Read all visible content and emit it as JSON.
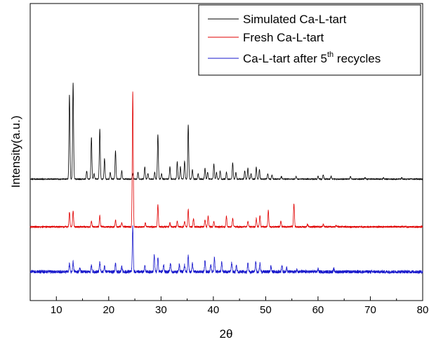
{
  "chart_data": {
    "type": "line",
    "xlabel": "2θ",
    "ylabel": "Intensity(a.u.)",
    "xlim": [
      5,
      80
    ],
    "x_ticks": [
      10,
      20,
      30,
      40,
      50,
      60,
      70,
      80
    ],
    "y_ticks_shown": false,
    "grid": false,
    "legend_placement": "top-right",
    "series": [
      {
        "name": "Simulated Ca-L-tart",
        "color": "#000000",
        "baseline": 0,
        "noise": 0.003,
        "peaks": [
          [
            12.5,
            0.62
          ],
          [
            13.2,
            0.71
          ],
          [
            15.8,
            0.06
          ],
          [
            16.7,
            0.31
          ],
          [
            17.2,
            0.04
          ],
          [
            18.3,
            0.37
          ],
          [
            19.2,
            0.15
          ],
          [
            20.3,
            0.05
          ],
          [
            21.3,
            0.21
          ],
          [
            22.5,
            0.06
          ],
          [
            24.6,
            0.04
          ],
          [
            25.6,
            0.05
          ],
          [
            26.9,
            0.09
          ],
          [
            27.5,
            0.04
          ],
          [
            28.8,
            0.05
          ],
          [
            29.4,
            0.33
          ],
          [
            30.1,
            0.04
          ],
          [
            31.7,
            0.09
          ],
          [
            33.1,
            0.13
          ],
          [
            33.7,
            0.09
          ],
          [
            34.5,
            0.13
          ],
          [
            35.2,
            0.4
          ],
          [
            36.0,
            0.07
          ],
          [
            37.1,
            0.04
          ],
          [
            38.4,
            0.08
          ],
          [
            38.9,
            0.05
          ],
          [
            40.1,
            0.11
          ],
          [
            40.6,
            0.05
          ],
          [
            41.3,
            0.06
          ],
          [
            42.5,
            0.05
          ],
          [
            43.7,
            0.12
          ],
          [
            44.3,
            0.05
          ],
          [
            46.0,
            0.06
          ],
          [
            46.6,
            0.08
          ],
          [
            47.2,
            0.04
          ],
          [
            48.2,
            0.09
          ],
          [
            48.8,
            0.07
          ],
          [
            50.4,
            0.04
          ],
          [
            51.2,
            0.03
          ],
          [
            53.0,
            0.02
          ],
          [
            55.8,
            0.02
          ],
          [
            60.0,
            0.02
          ],
          [
            61.0,
            0.03
          ],
          [
            62.5,
            0.02
          ],
          [
            66.2,
            0.02
          ],
          [
            69.0,
            0.01
          ],
          [
            72.5,
            0.01
          ],
          [
            76.0,
            0.01
          ]
        ]
      },
      {
        "name": "Fresh Ca-L-tart",
        "color": "#e00000",
        "baseline": 0,
        "noise": 0.006,
        "peaks": [
          [
            12.5,
            0.11
          ],
          [
            13.2,
            0.12
          ],
          [
            16.7,
            0.04
          ],
          [
            18.3,
            0.08
          ],
          [
            21.3,
            0.05
          ],
          [
            22.5,
            0.03
          ],
          [
            24.6,
            1.0
          ],
          [
            27.0,
            0.03
          ],
          [
            29.4,
            0.16
          ],
          [
            31.7,
            0.03
          ],
          [
            33.1,
            0.04
          ],
          [
            34.5,
            0.04
          ],
          [
            35.2,
            0.13
          ],
          [
            36.2,
            0.06
          ],
          [
            38.4,
            0.05
          ],
          [
            39.0,
            0.08
          ],
          [
            40.1,
            0.04
          ],
          [
            42.5,
            0.08
          ],
          [
            43.7,
            0.06
          ],
          [
            46.6,
            0.04
          ],
          [
            48.2,
            0.06
          ],
          [
            48.9,
            0.08
          ],
          [
            50.5,
            0.12
          ],
          [
            52.9,
            0.04
          ],
          [
            55.4,
            0.17
          ],
          [
            58.0,
            0.02
          ],
          [
            61.0,
            0.02
          ],
          [
            63.5,
            0.01
          ]
        ]
      },
      {
        "name": "Ca-L-tart after 5th recycles",
        "color": "#1a1acc",
        "baseline": 0,
        "noise": 0.012,
        "peaks": [
          [
            12.5,
            0.06
          ],
          [
            13.2,
            0.07
          ],
          [
            14.5,
            0.03
          ],
          [
            16.7,
            0.05
          ],
          [
            18.3,
            0.07
          ],
          [
            19.2,
            0.04
          ],
          [
            21.3,
            0.06
          ],
          [
            22.5,
            0.04
          ],
          [
            24.6,
            0.34
          ],
          [
            26.9,
            0.05
          ],
          [
            28.7,
            0.12
          ],
          [
            29.4,
            0.1
          ],
          [
            30.5,
            0.05
          ],
          [
            31.8,
            0.06
          ],
          [
            33.5,
            0.05
          ],
          [
            34.5,
            0.05
          ],
          [
            35.2,
            0.12
          ],
          [
            36.0,
            0.06
          ],
          [
            38.4,
            0.08
          ],
          [
            39.5,
            0.05
          ],
          [
            40.2,
            0.1
          ],
          [
            41.6,
            0.07
          ],
          [
            43.5,
            0.07
          ],
          [
            44.4,
            0.05
          ],
          [
            46.6,
            0.06
          ],
          [
            48.1,
            0.07
          ],
          [
            48.9,
            0.06
          ],
          [
            51.0,
            0.04
          ],
          [
            53.1,
            0.05
          ],
          [
            54.0,
            0.03
          ],
          [
            56.0,
            0.02
          ],
          [
            60.0,
            0.02
          ],
          [
            63.0,
            0.02
          ]
        ]
      }
    ],
    "legend": [
      {
        "label": "Simulated Ca-L-tart",
        "sup": "",
        "suffix": ""
      },
      {
        "label": "Fresh Ca-L-tart",
        "sup": "",
        "suffix": ""
      },
      {
        "label": "Ca-L-tart after 5",
        "sup": "th",
        "suffix": " recycles"
      }
    ]
  }
}
